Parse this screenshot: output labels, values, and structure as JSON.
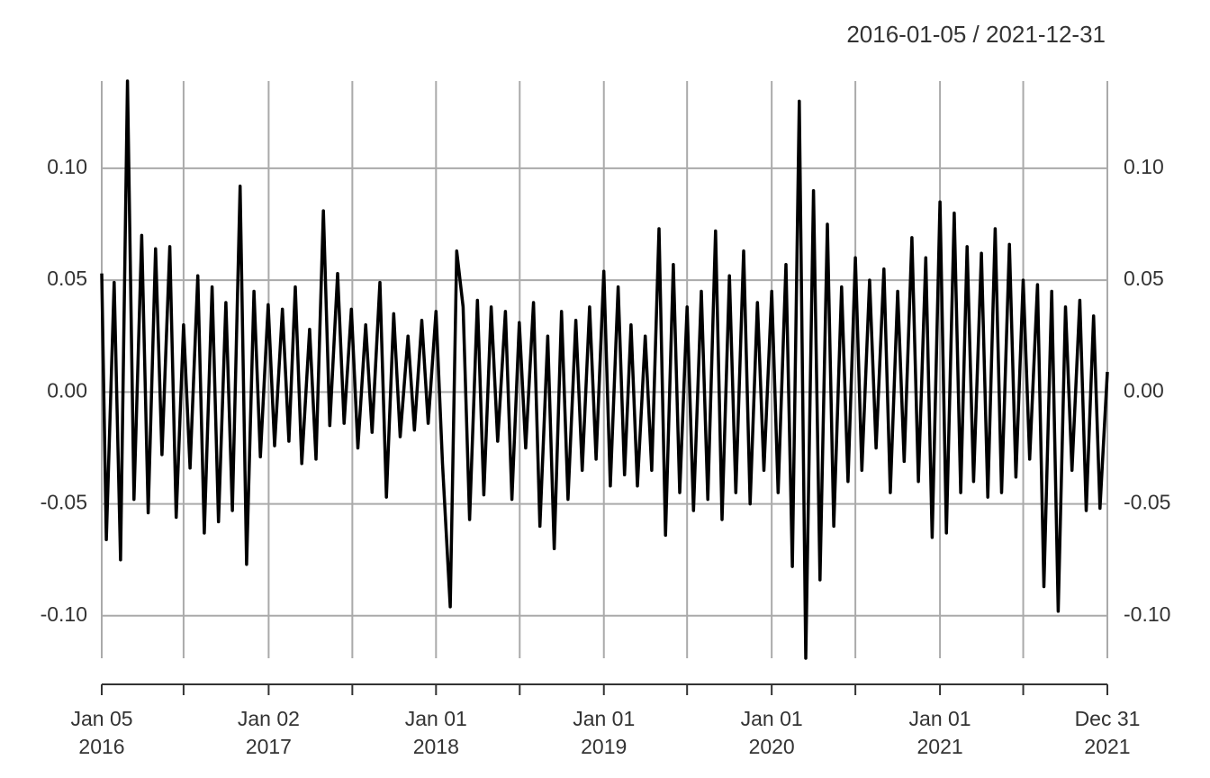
{
  "chart_data": {
    "type": "line",
    "title": "2016-01-05 / 2021-12-31",
    "x": [
      "2016-01-05",
      "2016-01-15",
      "2016-02-01",
      "2016-02-15",
      "2016-03-01",
      "2016-03-15",
      "2016-04-01",
      "2016-04-15",
      "2016-05-01",
      "2016-05-15",
      "2016-06-01",
      "2016-06-15",
      "2016-07-01",
      "2016-07-15",
      "2016-08-01",
      "2016-08-15",
      "2016-09-01",
      "2016-09-15",
      "2016-10-01",
      "2016-10-15",
      "2016-11-01",
      "2016-11-15",
      "2016-12-01",
      "2016-12-15",
      "2017-01-01",
      "2017-01-15",
      "2017-02-01",
      "2017-02-15",
      "2017-03-01",
      "2017-03-15",
      "2017-04-01",
      "2017-04-15",
      "2017-05-01",
      "2017-05-15",
      "2017-06-01",
      "2017-06-15",
      "2017-07-01",
      "2017-07-15",
      "2017-08-01",
      "2017-08-15",
      "2017-09-01",
      "2017-09-15",
      "2017-10-01",
      "2017-10-15",
      "2017-11-01",
      "2017-11-15",
      "2017-12-01",
      "2017-12-15",
      "2018-01-01",
      "2018-01-15",
      "2018-02-01",
      "2018-02-15",
      "2018-03-01",
      "2018-03-15",
      "2018-04-01",
      "2018-04-15",
      "2018-05-01",
      "2018-05-15",
      "2018-06-01",
      "2018-06-15",
      "2018-07-01",
      "2018-07-15",
      "2018-08-01",
      "2018-08-15",
      "2018-09-01",
      "2018-09-15",
      "2018-10-01",
      "2018-10-15",
      "2018-11-01",
      "2018-11-15",
      "2018-12-01",
      "2018-12-15",
      "2019-01-01",
      "2019-01-15",
      "2019-02-01",
      "2019-02-15",
      "2019-03-01",
      "2019-03-15",
      "2019-04-01",
      "2019-04-15",
      "2019-05-01",
      "2019-05-15",
      "2019-06-01",
      "2019-06-15",
      "2019-07-01",
      "2019-07-15",
      "2019-08-01",
      "2019-08-15",
      "2019-09-01",
      "2019-09-15",
      "2019-10-01",
      "2019-10-15",
      "2019-11-01",
      "2019-11-15",
      "2019-12-01",
      "2019-12-15",
      "2020-01-01",
      "2020-01-15",
      "2020-02-01",
      "2020-02-15",
      "2020-03-01",
      "2020-03-15",
      "2020-04-01",
      "2020-04-15",
      "2020-05-01",
      "2020-05-15",
      "2020-06-01",
      "2020-06-15",
      "2020-07-01",
      "2020-07-15",
      "2020-08-01",
      "2020-08-15",
      "2020-09-01",
      "2020-09-15",
      "2020-10-01",
      "2020-10-15",
      "2020-11-01",
      "2020-11-15",
      "2020-12-01",
      "2020-12-15",
      "2021-01-01",
      "2021-01-15",
      "2021-02-01",
      "2021-02-15",
      "2021-03-01",
      "2021-03-15",
      "2021-04-01",
      "2021-04-15",
      "2021-05-01",
      "2021-05-15",
      "2021-06-01",
      "2021-06-15",
      "2021-07-01",
      "2021-07-15",
      "2021-08-01",
      "2021-08-15",
      "2021-09-01",
      "2021-09-15",
      "2021-10-01",
      "2021-10-15",
      "2021-11-01",
      "2021-11-15",
      "2021-12-01",
      "2021-12-15",
      "2021-12-31"
    ],
    "series": [
      {
        "color": "#000000",
        "values": [
          0.053,
          -0.066,
          0.049,
          -0.075,
          0.139,
          -0.048,
          0.07,
          -0.054,
          0.064,
          -0.028,
          0.065,
          -0.056,
          0.03,
          -0.034,
          0.052,
          -0.063,
          0.047,
          -0.058,
          0.04,
          -0.053,
          0.092,
          -0.077,
          0.045,
          -0.029,
          0.039,
          -0.024,
          0.037,
          -0.022,
          0.047,
          -0.032,
          0.028,
          -0.03,
          0.081,
          -0.015,
          0.053,
          -0.014,
          0.037,
          -0.025,
          0.03,
          -0.018,
          0.049,
          -0.047,
          0.035,
          -0.02,
          0.025,
          -0.017,
          0.032,
          -0.014,
          0.036,
          -0.032,
          -0.096,
          0.063,
          0.038,
          -0.057,
          0.041,
          -0.046,
          0.038,
          -0.022,
          0.036,
          -0.048,
          0.031,
          -0.025,
          0.04,
          -0.06,
          0.025,
          -0.07,
          0.036,
          -0.048,
          0.032,
          -0.035,
          0.038,
          -0.03,
          0.054,
          -0.042,
          0.047,
          -0.037,
          0.03,
          -0.042,
          0.025,
          -0.035,
          0.073,
          -0.064,
          0.057,
          -0.045,
          0.038,
          -0.053,
          0.045,
          -0.048,
          0.072,
          -0.057,
          0.052,
          -0.045,
          0.063,
          -0.05,
          0.04,
          -0.035,
          0.045,
          -0.045,
          0.057,
          -0.078,
          0.13,
          -0.119,
          0.09,
          -0.084,
          0.075,
          -0.06,
          0.047,
          -0.04,
          0.06,
          -0.035,
          0.05,
          -0.025,
          0.055,
          -0.045,
          0.045,
          -0.031,
          0.069,
          -0.04,
          0.06,
          -0.065,
          0.085,
          -0.063,
          0.08,
          -0.045,
          0.065,
          -0.04,
          0.062,
          -0.047,
          0.073,
          -0.045,
          0.066,
          -0.038,
          0.05,
          -0.03,
          0.048,
          -0.087,
          0.045,
          -0.098,
          0.038,
          -0.035,
          0.041,
          -0.053,
          0.034,
          -0.052,
          0.009
        ]
      }
    ],
    "xlim": [
      "2016-01-05",
      "2021-12-31"
    ],
    "xticks": [
      {
        "value": "2016-01-05",
        "label": [
          "Jan 05",
          "2016"
        ]
      },
      {
        "value": "2016-07-01"
      },
      {
        "value": "2017-01-02",
        "label": [
          "Jan 02",
          "2017"
        ]
      },
      {
        "value": "2017-07-03"
      },
      {
        "value": "2018-01-01",
        "label": [
          "Jan 01",
          "2018"
        ]
      },
      {
        "value": "2018-07-02"
      },
      {
        "value": "2019-01-01",
        "label": [
          "Jan 01",
          "2019"
        ]
      },
      {
        "value": "2019-07-01"
      },
      {
        "value": "2020-01-01",
        "label": [
          "Jan 01",
          "2020"
        ]
      },
      {
        "value": "2020-07-01"
      },
      {
        "value": "2021-01-01",
        "label": [
          "Jan 01",
          "2021"
        ]
      },
      {
        "value": "2021-07-01"
      },
      {
        "value": "2021-12-31",
        "label": [
          "Dec 31",
          "2021"
        ]
      }
    ],
    "ylim": [
      -0.119,
      0.139
    ],
    "yticks": [
      {
        "value": -0.1,
        "label": "-0.10"
      },
      {
        "value": -0.05,
        "label": "-0.05"
      },
      {
        "value": 0,
        "label": "0.00"
      },
      {
        "value": 0.05,
        "label": "0.05"
      },
      {
        "value": 0.1,
        "label": "0.10"
      }
    ],
    "grid": true
  }
}
